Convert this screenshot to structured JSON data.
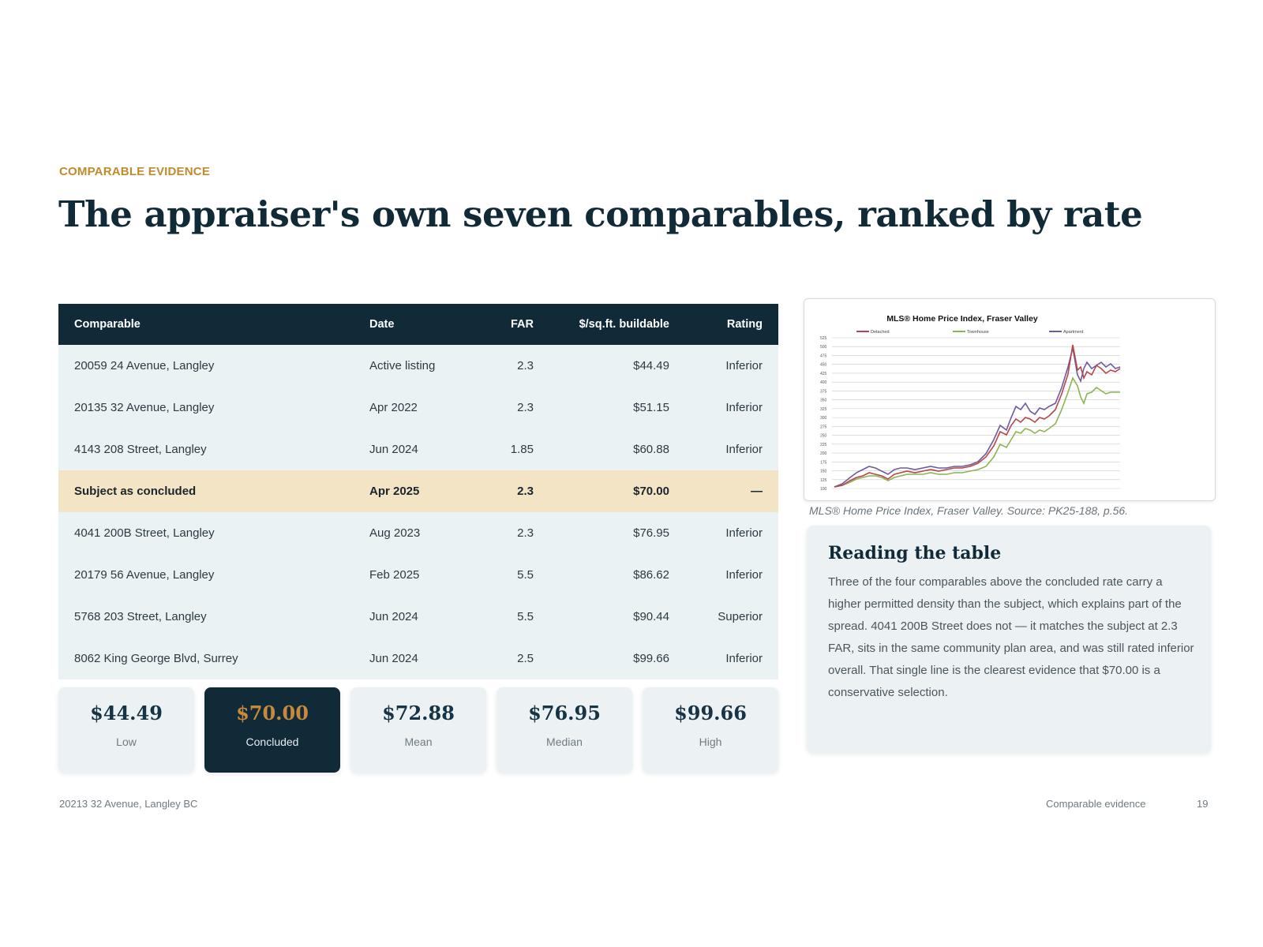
{
  "eyebrow": "COMPARABLE EVIDENCE",
  "title": "The appraiser's own seven comparables, ranked by rate",
  "table": {
    "headers": [
      "Comparable",
      "Date",
      "FAR",
      "$/sq.ft. buildable",
      "Rating"
    ],
    "rows": [
      {
        "comparable": "20059 24 Avenue, Langley",
        "date": "Active listing",
        "far": "2.3",
        "rate": "$44.49",
        "rating": "Inferior"
      },
      {
        "comparable": "20135 32 Avenue, Langley",
        "date": "Apr 2022",
        "far": "2.3",
        "rate": "$51.15",
        "rating": "Inferior"
      },
      {
        "comparable": "4143 208 Street, Langley",
        "date": "Jun 2024",
        "far": "1.85",
        "rate": "$60.88",
        "rating": "Inferior"
      },
      {
        "comparable": "Subject as concluded",
        "date": "Apr 2025",
        "far": "2.3",
        "rate": "$70.00",
        "rating": "—"
      },
      {
        "comparable": "4041 200B Street, Langley",
        "date": "Aug 2023",
        "far": "2.3",
        "rate": "$76.95",
        "rating": "Inferior"
      },
      {
        "comparable": "20179 56 Avenue, Langley",
        "date": "Feb 2025",
        "far": "5.5",
        "rate": "$86.62",
        "rating": "Inferior"
      },
      {
        "comparable": "5768 203 Street, Langley",
        "date": "Jun 2024",
        "far": "5.5",
        "rate": "$90.44",
        "rating": "Superior"
      },
      {
        "comparable": "8062 King George Blvd, Surrey",
        "date": "Jun 2024",
        "far": "2.5",
        "rate": "$99.66",
        "rating": "Inferior"
      }
    ]
  },
  "stats": [
    {
      "value": "$44.49",
      "label": "Low"
    },
    {
      "value": "$70.00",
      "label": "Concluded"
    },
    {
      "value": "$72.88",
      "label": "Mean"
    },
    {
      "value": "$76.95",
      "label": "Median"
    },
    {
      "value": "$99.66",
      "label": "High"
    }
  ],
  "figure": {
    "title": "MLS® Home Price Index, Fraser Valley",
    "legend": [
      "Detached",
      "Townhouse",
      "Apartment"
    ],
    "y_ticks": [
      "525",
      "500",
      "475",
      "450",
      "425",
      "400",
      "375",
      "350",
      "325",
      "300",
      "275",
      "250",
      "225",
      "200",
      "175",
      "150",
      "125",
      "100"
    ],
    "colors": {
      "detached": "#b5464b",
      "townhouse": "#8db451",
      "apartment": "#6e5a9e"
    },
    "caption": "MLS® Home Price Index, Fraser Valley. Source: PK25-188, p.56."
  },
  "note": {
    "heading": "Reading the table",
    "body": "Three of the four comparables above the concluded rate carry a higher permitted density than the subject, which explains part of the spread. 4041 200B Street does not — it matches the subject at 2.3 FAR, sits in the same community plan area, and was still rated inferior overall. That single line is the clearest evidence that $70.00 is a conservative selection."
  },
  "footer": {
    "address": "20213 32 Avenue, Langley BC",
    "section": "Comparable evidence",
    "page": "19"
  }
}
